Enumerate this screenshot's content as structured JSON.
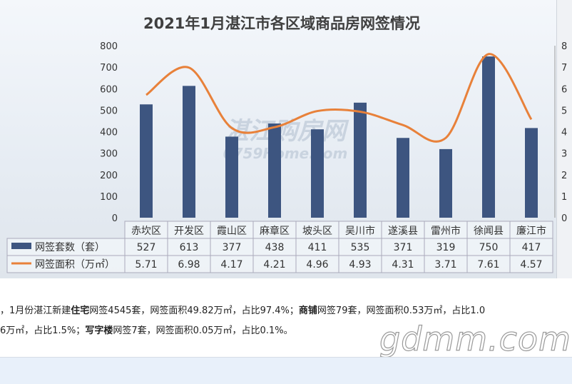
{
  "chart_data": {
    "type": "bar+line",
    "title": "2021年1月湛江市各区域商品房网签情况",
    "categories": [
      "赤坎区",
      "开发区",
      "霞山区",
      "麻章区",
      "坡头区",
      "吴川市",
      "遂溪县",
      "雷州市",
      "徐闻县",
      "廉江市"
    ],
    "series": [
      {
        "name": "网签套数（套）",
        "type": "bar",
        "axis": "left",
        "color": "#3d5580",
        "values": [
          527,
          613,
          377,
          438,
          411,
          535,
          371,
          319,
          750,
          417
        ]
      },
      {
        "name": "网签面积（万㎡）",
        "type": "line",
        "axis": "right",
        "color": "#e8813a",
        "values:": null,
        "values": [
          5.71,
          6.98,
          4.17,
          4.21,
          4.96,
          4.93,
          4.31,
          3.71,
          7.61,
          4.57
        ]
      }
    ],
    "ylim_left": [
      0,
      800
    ],
    "yticks_left": [
      "0",
      "100",
      "200",
      "300",
      "400",
      "500",
      "600",
      "700",
      "800"
    ],
    "ylim_right": [
      0,
      8
    ],
    "yticks_right": [
      "0",
      "1",
      "2",
      "3",
      "4",
      "5",
      "6",
      "7",
      "8"
    ],
    "legend": "data-table",
    "watermark": "湛江购房网 0759Home.com"
  },
  "text": {
    "line1": [
      {
        "t": "，1月份湛江新建"
      },
      {
        "t": "住宅",
        "b": true
      },
      {
        "t": "网签4545套，网签面积49.82万㎡，占比97.4%；"
      },
      {
        "t": "商铺",
        "b": true
      },
      {
        "t": "网签79套，网签面积0.53万㎡，占比1.0"
      }
    ],
    "line2": [
      {
        "t": "6万㎡，占比1.5%；"
      },
      {
        "t": "写字楼",
        "b": true
      },
      {
        "t": "网签7套，网签面积0.05万㎡，占比0.1%。"
      }
    ]
  },
  "site_watermark": "gdmm.com"
}
